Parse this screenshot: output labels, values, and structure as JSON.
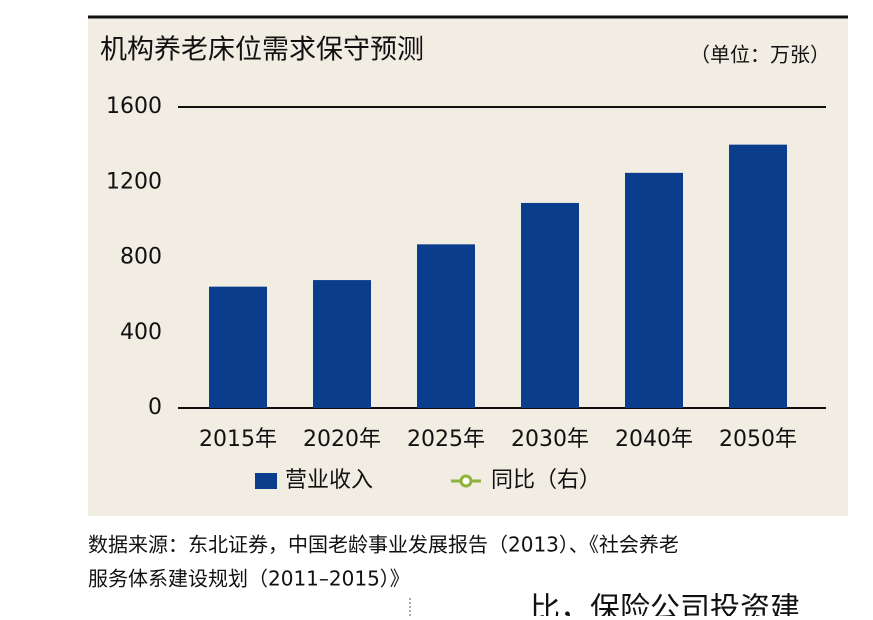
{
  "chart_data": {
    "type": "bar",
    "title": "机构养老床位需求保守预测",
    "unit": "（单位：万张）",
    "categories": [
      "2015年",
      "2020年",
      "2025年",
      "2030年",
      "2040年",
      "2050年"
    ],
    "series": [
      {
        "name": "营业收入",
        "color": "#0a3e8c",
        "values": [
          645,
          680,
          870,
          1090,
          1250,
          1400
        ]
      },
      {
        "name": "同比（右）",
        "color": "#8db33a",
        "values": [
          null,
          null,
          null,
          null,
          null,
          null
        ],
        "axis": "y2"
      }
    ],
    "ylim": [
      0,
      1600
    ],
    "yticks": [
      0,
      400,
      800,
      1200,
      1600
    ],
    "grid": false
  },
  "source": [
    "数据来源：东北证券，中国老龄事业发展报告（2013）、《社会养老",
    "服务体系建设规划（2011–2015）》"
  ],
  "body_fragment": "比，保险公司投资建"
}
